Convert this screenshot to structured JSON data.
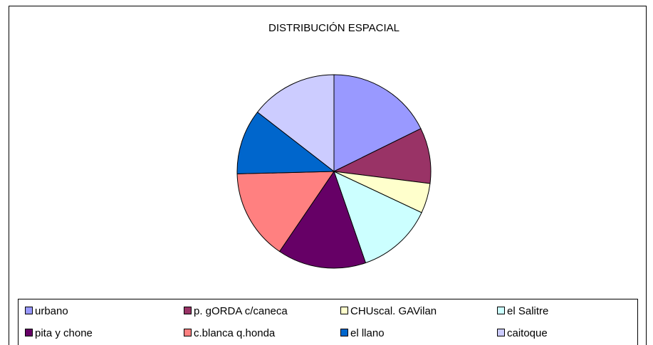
{
  "chart_data": {
    "type": "pie",
    "title": "DISTRIBUCIÓN ESPACIAL",
    "categories": [
      "urbano",
      "p. gORDA  c/caneca",
      "CHUscal.  GAVilan",
      "el Salitre",
      "pita y chone",
      "c.blanca  q.honda",
      "el llano",
      "caitoque"
    ],
    "values": [
      17.7,
      9.3,
      5,
      12.7,
      14.8,
      15.1,
      10.9,
      14.5
    ],
    "colors": [
      "#9999ff",
      "#993366",
      "#ffffcc",
      "#ccffff",
      "#660066",
      "#ff8080",
      "#0066cc",
      "#ccccff"
    ],
    "legend": "bottom"
  }
}
